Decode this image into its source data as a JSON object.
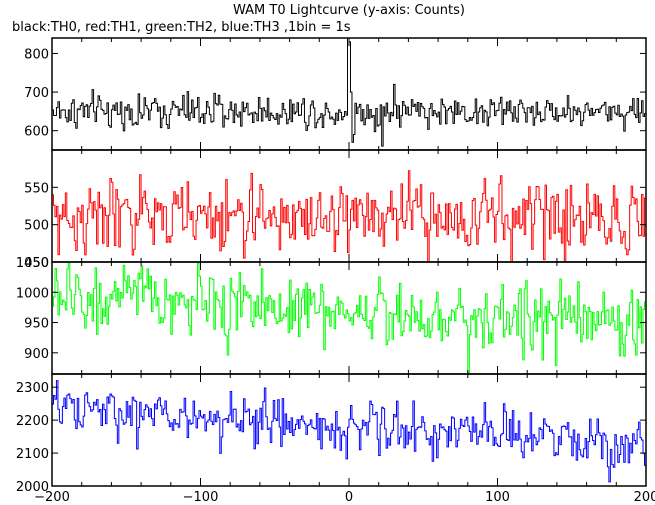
{
  "chart_data": {
    "type": "line",
    "title": "WAM T0 Lightcurve (y-axis: Counts)",
    "subtitle": "black:TH0, red:TH1, green:TH2, blue:TH3 ,1bin = 1s",
    "x_range": [
      -200,
      200
    ],
    "x_ticks": [
      -200,
      -100,
      0,
      100,
      200
    ],
    "grid": false,
    "panels": [
      {
        "name": "TH0",
        "color": "#000000",
        "ylim": [
          550,
          840
        ],
        "yticks": [
          600,
          700,
          800
        ],
        "baseline": 650,
        "noise": 25,
        "trend": 0,
        "features": [
          {
            "x": -1,
            "y": 840
          },
          {
            "x": 0,
            "y": 830
          },
          {
            "x": 1,
            "y": 700
          },
          {
            "x": 2,
            "y": 570
          },
          {
            "x": 3,
            "y": 590
          },
          {
            "x": 22,
            "y": 560
          },
          {
            "x": 30,
            "y": 720
          }
        ]
      },
      {
        "name": "TH1",
        "color": "#ff0000",
        "ylim": [
          450,
          600
        ],
        "yticks": [
          450,
          500,
          550
        ],
        "baseline": 510,
        "noise": 28,
        "trend": 0,
        "features": []
      },
      {
        "name": "TH2",
        "color": "#00ff00",
        "ylim": [
          865,
          1050
        ],
        "yticks": [
          900,
          950,
          1000,
          1050
        ],
        "baseline": 970,
        "noise": 32,
        "trend": -40,
        "features": []
      },
      {
        "name": "TH3",
        "color": "#0000ff",
        "ylim": [
          2000,
          2340
        ],
        "yticks": [
          2000,
          2100,
          2200,
          2300
        ],
        "baseline": 2180,
        "noise": 45,
        "trend": -90,
        "features": []
      }
    ]
  }
}
